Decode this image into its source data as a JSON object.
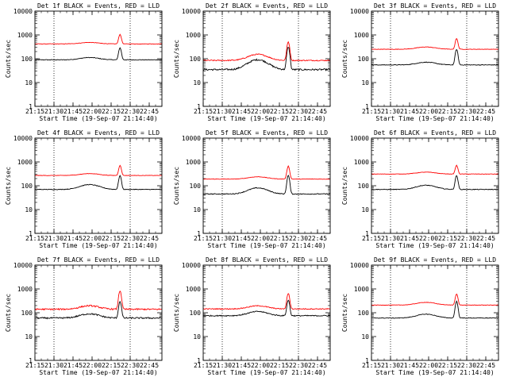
{
  "figure": {
    "background": "#ffffff",
    "events_color": "#000000",
    "lld_color": "#ff0000"
  },
  "chart_data": [
    {
      "type": "line",
      "title": "Det 1f BLACK = Events, RED = LLD",
      "xlabel": "Start Time (19-Sep-07 21:14:40)",
      "ylabel": "Counts/sec",
      "yscale": "log",
      "ylim": [
        1,
        10000
      ],
      "x": [
        "21:15",
        "21:30",
        "21:45",
        "22:00",
        "22:15",
        "22:30",
        "22:45"
      ],
      "xlim": [
        "21:15",
        "22:55"
      ],
      "vlines": [
        "21:30",
        "22:30"
      ],
      "series": [
        {
          "name": "BLACK = Events",
          "base": 90,
          "bump": 1.25,
          "spike": 3.2,
          "noise": 0.03
        },
        {
          "name": "RED = LLD",
          "base": 420,
          "bump": 1.15,
          "spike": 2.5,
          "noise": 0.02
        }
      ]
    },
    {
      "type": "line",
      "title": "Det 2f BLACK = Events, RED = LLD",
      "xlabel": "Start Time (19-Sep-07 21:14:40)",
      "ylabel": "Counts/sec",
      "yscale": "log",
      "ylim": [
        1,
        10000
      ],
      "x": [
        "21:15",
        "21:30",
        "21:45",
        "22:00",
        "22:15",
        "22:30",
        "22:45"
      ],
      "xlim": [
        "21:15",
        "22:55"
      ],
      "vlines": [
        "21:30",
        "22:30"
      ],
      "series": [
        {
          "name": "BLACK = Events",
          "base": 35,
          "bump": 2.6,
          "spike": 9,
          "noise": 0.08
        },
        {
          "name": "RED = LLD",
          "base": 85,
          "bump": 1.8,
          "spike": 6,
          "noise": 0.05
        }
      ]
    },
    {
      "type": "line",
      "title": "Det 3f BLACK = Events, RED = LLD",
      "xlabel": "Start Time (19-Sep-07 21:14:40)",
      "ylabel": "Counts/sec",
      "yscale": "log",
      "ylim": [
        1,
        10000
      ],
      "x": [
        "21:15",
        "21:30",
        "21:45",
        "22:00",
        "22:15",
        "22:30",
        "22:45"
      ],
      "xlim": [
        "21:15",
        "22:55"
      ],
      "vlines": [
        "21:30",
        "22:30"
      ],
      "series": [
        {
          "name": "BLACK = Events",
          "base": 55,
          "bump": 1.3,
          "spike": 4.5,
          "noise": 0.03
        },
        {
          "name": "RED = LLD",
          "base": 250,
          "bump": 1.25,
          "spike": 2.8,
          "noise": 0.02
        }
      ]
    },
    {
      "type": "line",
      "title": "Det 4f BLACK = Events, RED = LLD",
      "xlabel": "Start Time (19-Sep-07 21:14:40)",
      "ylabel": "Counts/sec",
      "yscale": "log",
      "ylim": [
        1,
        10000
      ],
      "x": [
        "21:15",
        "21:30",
        "21:45",
        "22:00",
        "22:15",
        "22:30",
        "22:45"
      ],
      "xlim": [
        "21:15",
        "22:55"
      ],
      "vlines": [
        "21:30",
        "22:30"
      ],
      "series": [
        {
          "name": "BLACK = Events",
          "base": 70,
          "bump": 1.6,
          "spike": 3.8,
          "noise": 0.03
        },
        {
          "name": "RED = LLD",
          "base": 270,
          "bump": 1.2,
          "spike": 2.6,
          "noise": 0.02
        }
      ]
    },
    {
      "type": "line",
      "title": "Det 5f BLACK = Events, RED = LLD",
      "xlabel": "Start Time (19-Sep-07 21:14:40)",
      "ylabel": "Counts/sec",
      "yscale": "log",
      "ylim": [
        1,
        10000
      ],
      "x": [
        "21:15",
        "21:30",
        "21:45",
        "22:00",
        "22:15",
        "22:30",
        "22:45"
      ],
      "xlim": [
        "21:15",
        "22:55"
      ],
      "vlines": [
        "21:30",
        "22:30"
      ],
      "series": [
        {
          "name": "BLACK = Events",
          "base": 45,
          "bump": 1.8,
          "spike": 6,
          "noise": 0.04
        },
        {
          "name": "RED = LLD",
          "base": 190,
          "bump": 1.25,
          "spike": 3.5,
          "noise": 0.02
        }
      ]
    },
    {
      "type": "line",
      "title": "Det 6f BLACK = Events, RED = LLD",
      "xlabel": "Start Time (19-Sep-07 21:14:40)",
      "ylabel": "Counts/sec",
      "yscale": "log",
      "ylim": [
        1,
        10000
      ],
      "x": [
        "21:15",
        "21:30",
        "21:45",
        "22:00",
        "22:15",
        "22:30",
        "22:45"
      ],
      "xlim": [
        "21:15",
        "22:55"
      ],
      "vlines": [
        "21:30",
        "22:30"
      ],
      "series": [
        {
          "name": "BLACK = Events",
          "base": 70,
          "bump": 1.5,
          "spike": 3.8,
          "noise": 0.03
        },
        {
          "name": "RED = LLD",
          "base": 310,
          "bump": 1.2,
          "spike": 2.3,
          "noise": 0.02
        }
      ]
    },
    {
      "type": "line",
      "title": "Det 7f BLACK = Events, RED = LLD",
      "xlabel": "Start Time (19-Sep-07 21:14:40)",
      "ylabel": "Counts/sec",
      "yscale": "log",
      "ylim": [
        1,
        10000
      ],
      "x": [
        "21:15",
        "21:30",
        "21:45",
        "22:00",
        "22:15",
        "22:30",
        "22:45"
      ],
      "xlim": [
        "21:15",
        "22:55"
      ],
      "vlines": [
        "21:30",
        "22:30"
      ],
      "series": [
        {
          "name": "BLACK = Events",
          "base": 60,
          "bump": 1.5,
          "spike": 5,
          "noise": 0.07
        },
        {
          "name": "RED = LLD",
          "base": 140,
          "bump": 1.4,
          "spike": 6,
          "noise": 0.07
        }
      ]
    },
    {
      "type": "line",
      "title": "Det 8f BLACK = Events, RED = LLD",
      "xlabel": "Start Time (19-Sep-07 21:14:40)",
      "ylabel": "Counts/sec",
      "yscale": "log",
      "ylim": [
        1,
        10000
      ],
      "x": [
        "21:15",
        "21:30",
        "21:45",
        "22:00",
        "22:15",
        "22:30",
        "22:45"
      ],
      "xlim": [
        "21:15",
        "22:55"
      ],
      "vlines": [
        "21:30",
        "22:30"
      ],
      "series": [
        {
          "name": "BLACK = Events",
          "base": 75,
          "bump": 1.5,
          "spike": 4.5,
          "noise": 0.05
        },
        {
          "name": "RED = LLD",
          "base": 145,
          "bump": 1.35,
          "spike": 4.5,
          "noise": 0.04
        }
      ]
    },
    {
      "type": "line",
      "title": "Det 9f BLACK = Events, RED = LLD",
      "xlabel": "Start Time (19-Sep-07 21:14:40)",
      "ylabel": "Counts/sec",
      "yscale": "log",
      "ylim": [
        1,
        10000
      ],
      "x": [
        "21:15",
        "21:30",
        "21:45",
        "22:00",
        "22:15",
        "22:30",
        "22:45"
      ],
      "xlim": [
        "21:15",
        "22:55"
      ],
      "vlines": [
        "21:30",
        "22:30"
      ],
      "series": [
        {
          "name": "BLACK = Events",
          "base": 60,
          "bump": 1.45,
          "spike": 5,
          "noise": 0.03
        },
        {
          "name": "RED = LLD",
          "base": 210,
          "bump": 1.3,
          "spike": 2.9,
          "noise": 0.02
        }
      ]
    }
  ]
}
